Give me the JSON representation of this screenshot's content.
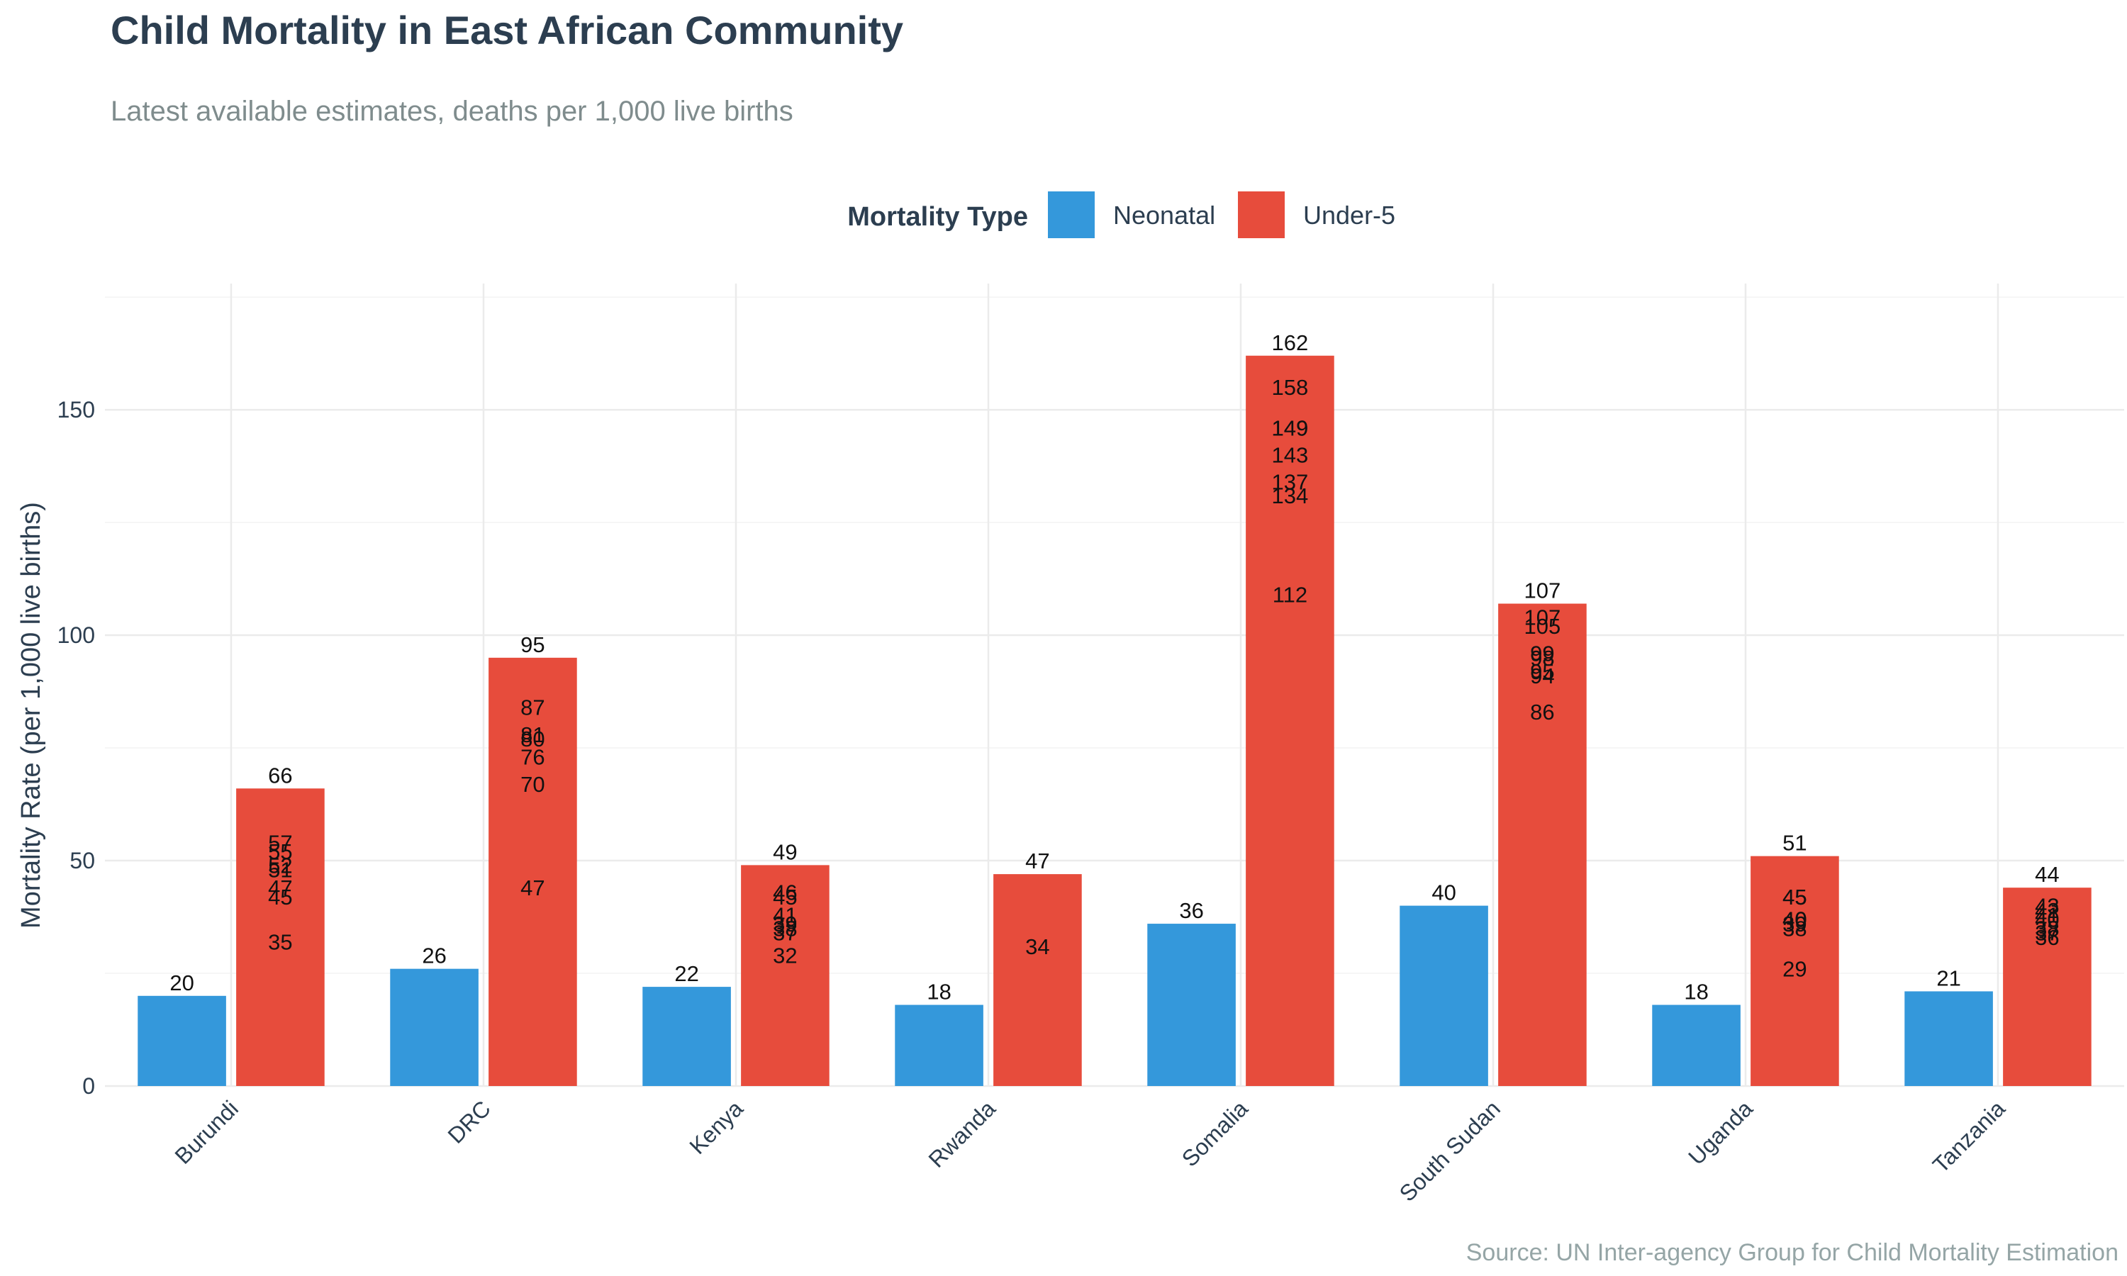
{
  "chart_data": {
    "type": "bar",
    "title": "Child Mortality in East African Community",
    "subtitle": "Latest available estimates, deaths per 1,000 live births",
    "xlabel": "",
    "ylabel": "Mortality Rate (per 1,000 live births)",
    "caption": "Source: UN Inter-agency Group for Child Mortality Estimation",
    "ylim": [
      0,
      178
    ],
    "yticks": [
      0,
      50,
      100,
      150
    ],
    "grid": true,
    "legend": {
      "title": "Mortality Type",
      "placement": "top"
    },
    "categories": [
      "Burundi",
      "DRC",
      "Kenya",
      "Rwanda",
      "Somalia",
      "South Sudan",
      "Uganda",
      "Tanzania"
    ],
    "series": [
      {
        "name": "Neonatal",
        "color": "#3498db",
        "values": [
          20,
          26,
          22,
          18,
          36,
          40,
          18,
          21
        ]
      },
      {
        "name": "Under-5",
        "color": "#e74c3c",
        "values": [
          66,
          95,
          49,
          47,
          162,
          107,
          51,
          44
        ]
      }
    ],
    "overlapping_labels": [
      [
        57,
        55,
        52,
        51,
        47,
        45,
        35
      ],
      [
        87,
        81,
        80,
        76,
        70,
        47
      ],
      [
        46,
        45,
        41,
        39,
        38,
        37,
        32
      ],
      [
        34
      ],
      [
        158,
        149,
        149,
        143,
        137,
        134,
        112
      ],
      [
        107,
        105,
        99,
        98,
        95,
        94,
        86
      ],
      [
        45,
        45,
        40,
        40,
        39,
        38,
        29
      ],
      [
        43,
        42,
        41,
        40,
        38,
        37,
        36
      ]
    ]
  }
}
